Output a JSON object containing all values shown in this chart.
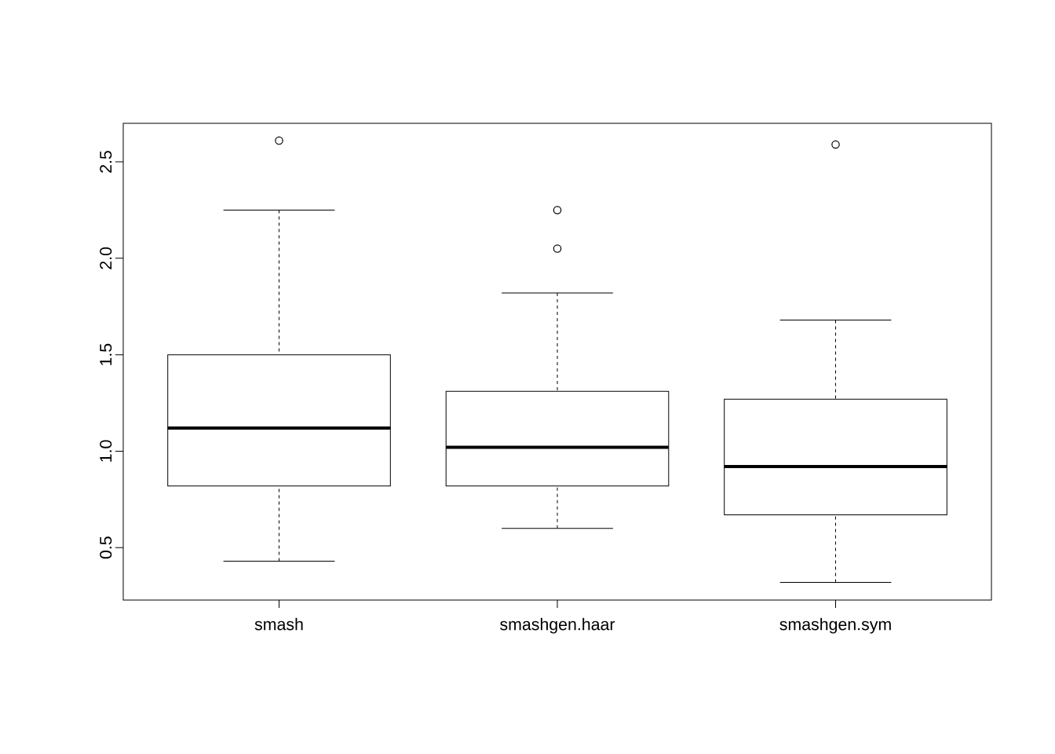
{
  "chart_data": {
    "type": "box",
    "categories": [
      "smash",
      "smashgen.haar",
      "smashgen.sym"
    ],
    "boxes": [
      {
        "low": 0.43,
        "q1": 0.82,
        "median": 1.12,
        "q3": 1.5,
        "high": 2.25,
        "outliers": [
          2.61
        ]
      },
      {
        "low": 0.6,
        "q1": 0.82,
        "median": 1.02,
        "q3": 1.31,
        "high": 1.82,
        "outliers": [
          2.25,
          2.05
        ]
      },
      {
        "low": 0.32,
        "q1": 0.67,
        "median": 0.92,
        "q3": 1.27,
        "high": 1.68,
        "outliers": [
          2.59
        ]
      }
    ],
    "ylim": [
      0.228,
      2.7
    ],
    "yticks": [
      0.5,
      {
        "value": 1.0,
        "label": "1.0"
      },
      1.5,
      {
        "value": 2.0,
        "label": "2.0"
      },
      2.5
    ],
    "grid": false
  }
}
